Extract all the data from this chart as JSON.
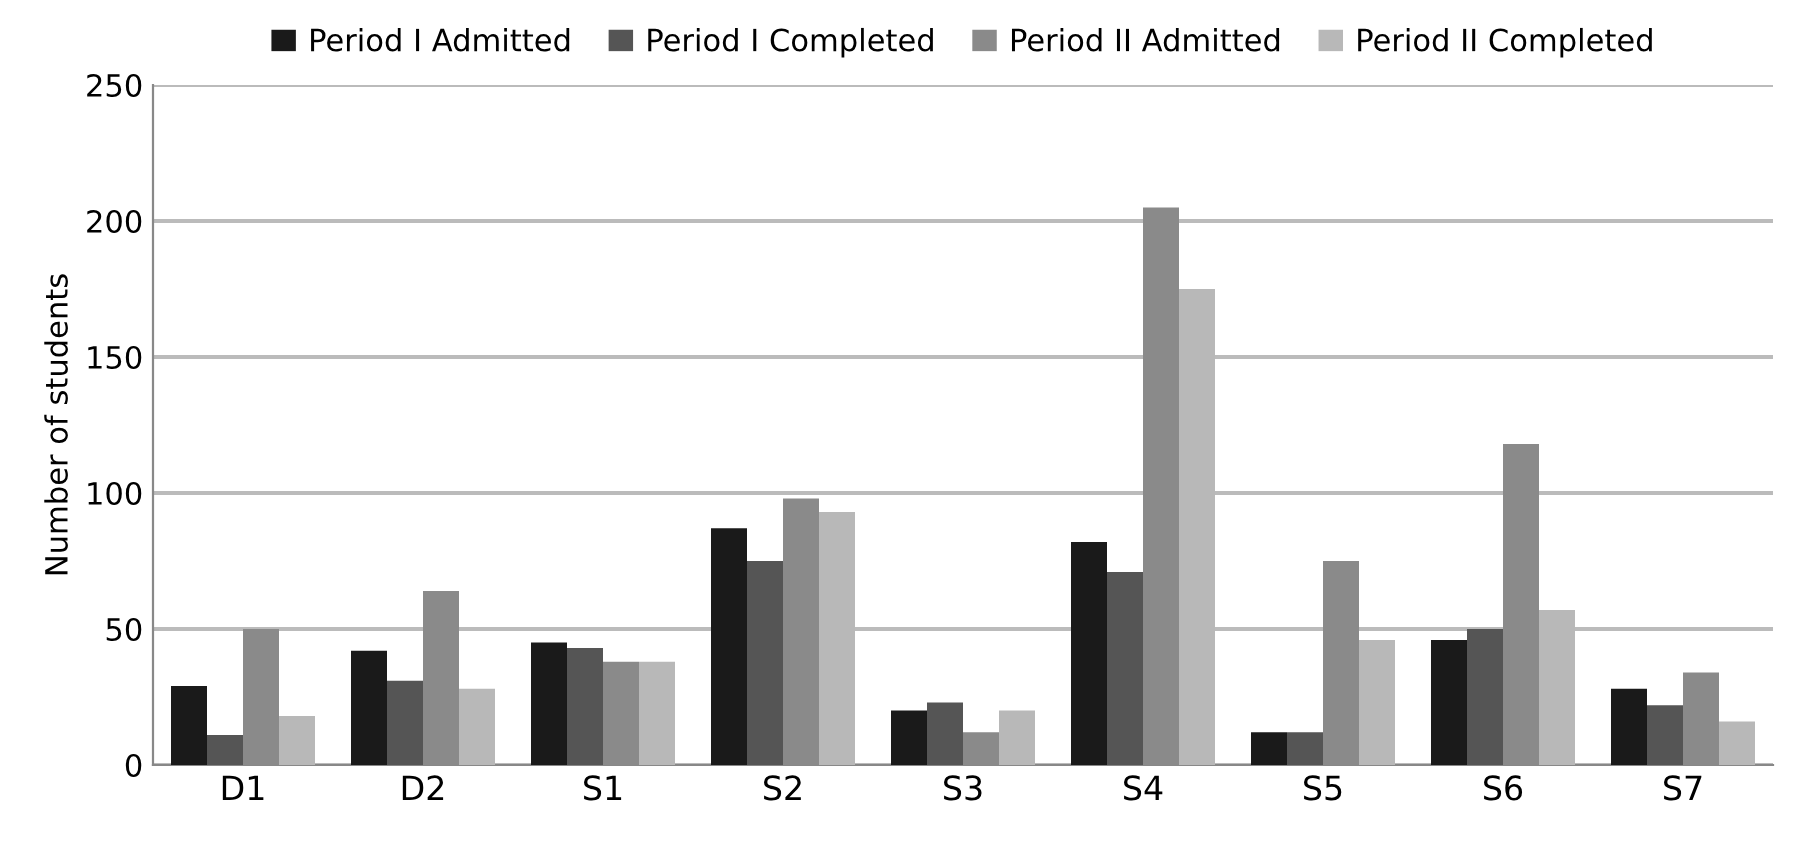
{
  "chart_data": {
    "type": "bar",
    "ylabel": "Number of students",
    "categories": [
      "D1",
      "D2",
      "S1",
      "S2",
      "S3",
      "S4",
      "S5",
      "S6",
      "S7"
    ],
    "series": [
      {
        "name": "Period I Admitted",
        "color": "#1a1a1a",
        "values": [
          29,
          42,
          45,
          87,
          20,
          82,
          12,
          46,
          28
        ]
      },
      {
        "name": "Period I Completed",
        "color": "#555555",
        "values": [
          11,
          31,
          43,
          75,
          23,
          71,
          12,
          50,
          22
        ]
      },
      {
        "name": "Period II Admitted",
        "color": "#8a8a8a",
        "values": [
          50,
          64,
          38,
          98,
          12,
          205,
          75,
          118,
          34
        ]
      },
      {
        "name": "Period II Completed",
        "color": "#b8b8b8",
        "values": [
          18,
          28,
          38,
          93,
          20,
          175,
          46,
          57,
          16
        ]
      }
    ],
    "ylim": [
      0,
      250
    ],
    "yticks": [
      0,
      50,
      100,
      150,
      200,
      250
    ],
    "grid": "y",
    "legend": "top"
  }
}
